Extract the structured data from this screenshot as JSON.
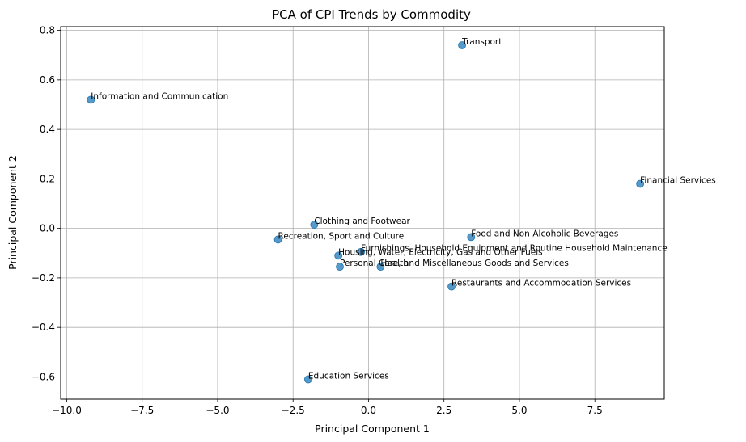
{
  "chart_data": {
    "type": "scatter",
    "title": "PCA of CPI Trends by Commodity",
    "xlabel": "Principal Component 1",
    "ylabel": "Principal Component 2",
    "xlim": [
      -10.2,
      9.8
    ],
    "ylim": [
      -0.69,
      0.815
    ],
    "xticks": [
      -10.0,
      -7.5,
      -5.0,
      -2.5,
      0.0,
      2.5,
      5.0,
      7.5
    ],
    "xtick_labels": [
      "−10.0",
      "−7.5",
      "−5.0",
      "−2.5",
      "0.0",
      "2.5",
      "5.0",
      "7.5"
    ],
    "yticks": [
      -0.6,
      -0.4,
      -0.2,
      0.0,
      0.2,
      0.4,
      0.6,
      0.8
    ],
    "ytick_labels": [
      "−0.6",
      "−0.4",
      "−0.2",
      "0.0",
      "0.2",
      "0.4",
      "0.6",
      "0.8"
    ],
    "grid": true,
    "marker_color": "#1f77b4",
    "points": [
      {
        "label": "Transport",
        "x": 3.1,
        "y": 0.74
      },
      {
        "label": "Information and Communication",
        "x": -9.2,
        "y": 0.52
      },
      {
        "label": "Financial Services",
        "x": 9.0,
        "y": 0.18
      },
      {
        "label": "Clothing and Footwear",
        "x": -1.8,
        "y": 0.015
      },
      {
        "label": "Food and Non-Alcoholic Beverages",
        "x": 3.4,
        "y": -0.035
      },
      {
        "label": "Recreation, Sport and Culture",
        "x": -3.0,
        "y": -0.045
      },
      {
        "label": "Furnishings, Household Equipment and Routine Household Maintenance",
        "x": -0.25,
        "y": -0.095
      },
      {
        "label": "Housing, Water, Electricity, Gas and Other Fuels",
        "x": -1.0,
        "y": -0.11
      },
      {
        "label": "Personal Care, and Miscellaneous Goods and Services",
        "x": -0.95,
        "y": -0.155
      },
      {
        "label": "Health",
        "x": 0.4,
        "y": -0.155
      },
      {
        "label": "Restaurants and Accommodation Services",
        "x": 2.75,
        "y": -0.235
      },
      {
        "label": "Education Services",
        "x": -2.0,
        "y": -0.61
      }
    ]
  }
}
